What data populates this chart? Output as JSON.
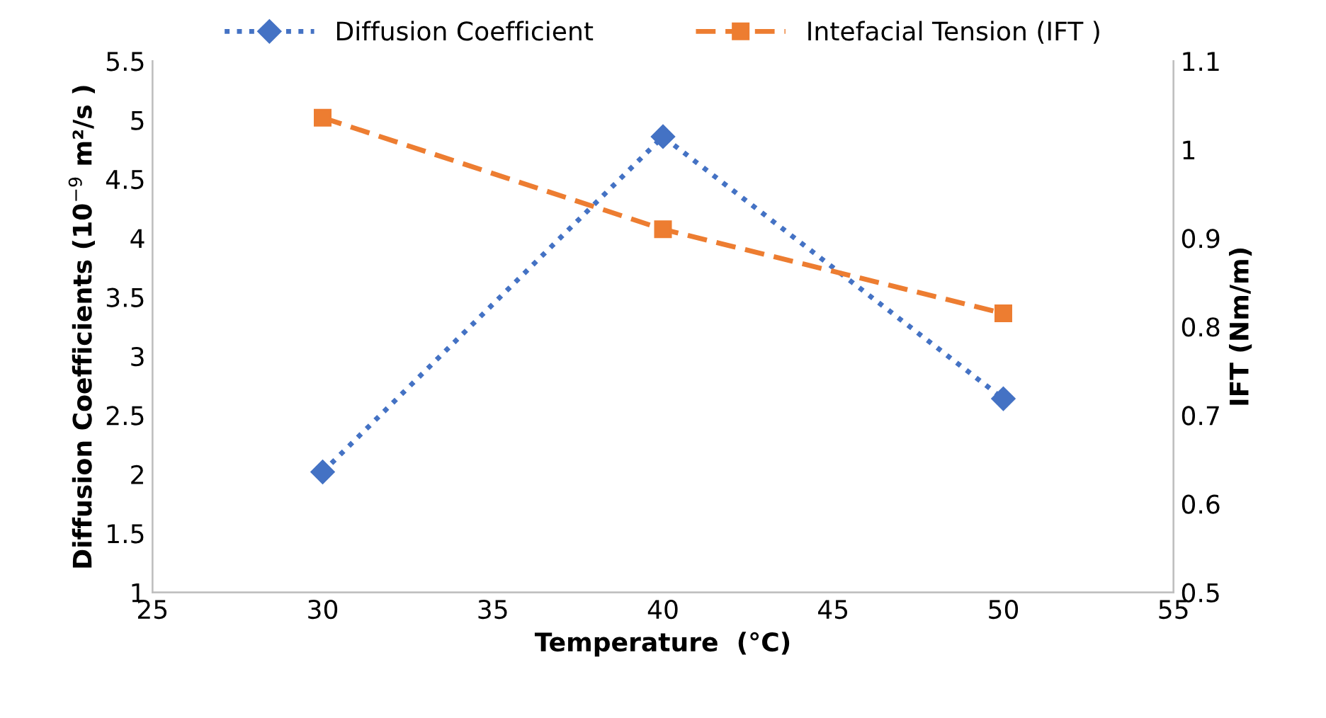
{
  "chart_data": {
    "type": "line",
    "xlabel": "Temperature  (°C)",
    "ylabel": "Diffusion Coefficients (10$^{−9}$ m²/s )",
    "y2label": "IFT (Nm/m)",
    "x": [
      30,
      40,
      50
    ],
    "series": [
      {
        "name": "Diffusion Coefficient",
        "color": "#4472c4",
        "values": [
          2.02,
          4.86,
          2.64
        ],
        "marker": "diamond",
        "line_style": "dotted"
      },
      {
        "name": "Intefacial Tension (IFT )",
        "color": "#ed7d31",
        "values": [
          1.036,
          0.91,
          0.815
        ],
        "axis": "y2",
        "marker": "square",
        "line_style": "dashed"
      }
    ],
    "xlim": [
      25,
      55
    ],
    "xticks": [
      25,
      30,
      35,
      40,
      45,
      50,
      55
    ],
    "ylim": [
      1,
      5.5
    ],
    "yticks": [
      1,
      1.5,
      2,
      2.5,
      3,
      3.5,
      4,
      4.5,
      5,
      5.5
    ],
    "y2lim": [
      0.5,
      1.1
    ],
    "y2ticks": [
      0.5,
      0.6,
      0.7,
      0.8,
      0.9,
      1,
      1.1
    ],
    "legend": "top",
    "grid": false
  }
}
